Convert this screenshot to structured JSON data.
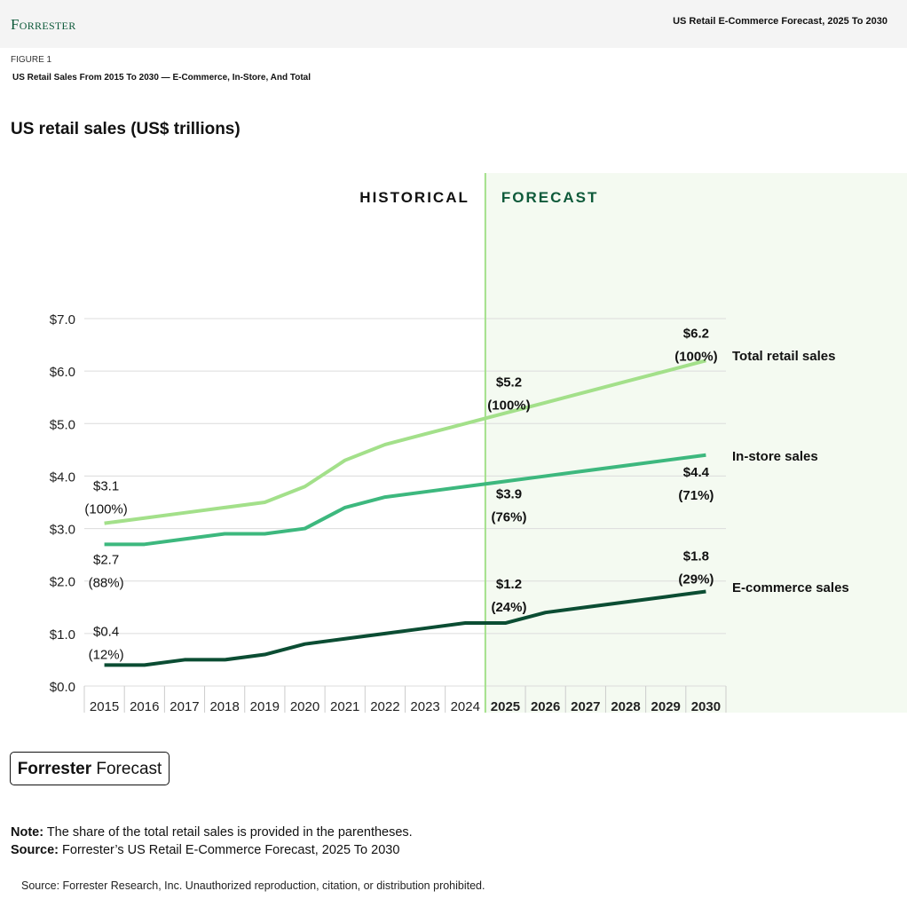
{
  "header": {
    "logo": "Forrester",
    "doc_title": "US Retail E-Commerce Forecast, 2025 To 2030"
  },
  "figure": {
    "label": "FIGURE 1",
    "title": "US Retail Sales From 2015 To 2030 — E-Commerce, In-Store, And Total"
  },
  "chart_data": {
    "type": "line",
    "title": "US retail sales (US$ trillions)",
    "region_labels": {
      "historical": "HISTORICAL",
      "forecast": "FORECAST"
    },
    "categories": [
      "2015",
      "2016",
      "2017",
      "2018",
      "2019",
      "2020",
      "2021",
      "2022",
      "2023",
      "2024",
      "2025",
      "2026",
      "2027",
      "2028",
      "2029",
      "2030"
    ],
    "forecast_start": "2025",
    "ylim": [
      0,
      7
    ],
    "yticks": [
      "$0.0",
      "$1.0",
      "$2.0",
      "$3.0",
      "$4.0",
      "$5.0",
      "$6.0",
      "$7.0"
    ],
    "grid": true,
    "series": [
      {
        "name": "Total retail sales",
        "color": "#a3e08a",
        "values": [
          3.1,
          3.2,
          3.3,
          3.4,
          3.5,
          3.8,
          4.3,
          4.6,
          4.8,
          5.0,
          5.2,
          5.4,
          5.6,
          5.8,
          6.0,
          6.2
        ]
      },
      {
        "name": "In-store sales",
        "color": "#3db87e",
        "values": [
          2.7,
          2.7,
          2.8,
          2.9,
          2.9,
          3.0,
          3.4,
          3.6,
          3.7,
          3.8,
          3.9,
          4.0,
          4.1,
          4.2,
          4.3,
          4.4
        ]
      },
      {
        "name": "E-commerce sales",
        "color": "#0b4d33",
        "values": [
          0.4,
          0.4,
          0.5,
          0.5,
          0.6,
          0.8,
          0.9,
          1.0,
          1.1,
          1.2,
          1.2,
          1.4,
          1.5,
          1.6,
          1.7,
          1.8
        ]
      }
    ],
    "annotations": [
      {
        "series": 0,
        "year": "2015",
        "value": "$3.1",
        "share": "(100%)"
      },
      {
        "series": 1,
        "year": "2015",
        "value": "$2.7",
        "share": "(88%)"
      },
      {
        "series": 2,
        "year": "2015",
        "value": "$0.4",
        "share": "(12%)"
      },
      {
        "series": 0,
        "year": "2025",
        "value": "$5.2",
        "share": "(100%)"
      },
      {
        "series": 1,
        "year": "2025",
        "value": "$3.9",
        "share": "(76%)"
      },
      {
        "series": 2,
        "year": "2025",
        "value": "$1.2",
        "share": "(24%)"
      },
      {
        "series": 0,
        "year": "2030",
        "value": "$6.2",
        "share": "(100%)"
      },
      {
        "series": 1,
        "year": "2030",
        "value": "$4.4",
        "share": "(71%)"
      },
      {
        "series": 2,
        "year": "2030",
        "value": "$1.8",
        "share": "(29%)"
      }
    ]
  },
  "badge": {
    "bold": "Forrester",
    "rest": " Forecast"
  },
  "notes": {
    "note_label": "Note:",
    "note_text": " The share of the total retail sales is provided in the parentheses.",
    "source_label": "Source:",
    "source_text": " Forrester’s US Retail E-Commerce Forecast, 2025 To 2030"
  },
  "footer": "Source: Forrester Research, Inc. Unauthorized reproduction, citation, or distribution prohibited."
}
